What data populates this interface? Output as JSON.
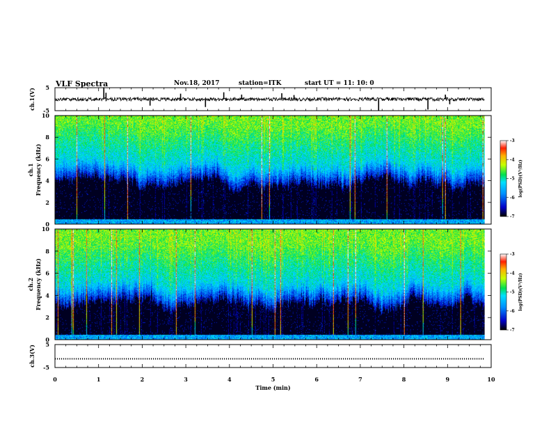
{
  "header": {
    "title": "VLF Spectra",
    "date": "Nov.18, 2017",
    "station": "station=ITK",
    "start": "start  UT =   11: 10: 0"
  },
  "colorbar": {
    "ticks": [
      "-3",
      "-4",
      "-5",
      "-6",
      "-7"
    ],
    "label": "log(PSD)(V²/Hz)"
  },
  "chart_data": [
    {
      "type": "line",
      "name": "ch.1 waveform",
      "ylabel": "ch.1(V)",
      "ylim": [
        -5,
        5
      ],
      "yticks": [
        "5",
        "-5"
      ],
      "xlim": [
        0,
        10
      ],
      "baseline": 0,
      "spikes": [
        {
          "x": 1.12,
          "y": 5.2
        },
        {
          "x": 1.17,
          "y": 2.8
        },
        {
          "x": 2.18,
          "y": -2.8
        },
        {
          "x": 2.88,
          "y": 2.4
        },
        {
          "x": 3.45,
          "y": -3.4
        },
        {
          "x": 3.87,
          "y": 3.0
        },
        {
          "x": 4.28,
          "y": 2.0
        },
        {
          "x": 5.2,
          "y": 2.6
        },
        {
          "x": 5.48,
          "y": 1.8
        },
        {
          "x": 7.42,
          "y": -5.0
        },
        {
          "x": 8.55,
          "y": -4.5
        },
        {
          "x": 8.95,
          "y": 2.0
        },
        {
          "x": 9.05,
          "y": -2.2
        }
      ]
    },
    {
      "type": "heatmap",
      "name": "ch.1 spectrogram",
      "ylabel": "ch.1\nFrequency (kHz)",
      "ylim": [
        0,
        10
      ],
      "yticks": [
        "0",
        "2",
        "4",
        "6",
        "8",
        "10"
      ],
      "xlim": [
        0,
        10
      ],
      "color_range": [
        -7,
        -3
      ],
      "cutoff_khz": 5.2
    },
    {
      "type": "heatmap",
      "name": "ch.2 spectrogram",
      "ylabel": "ch.2\nFrequency (kHz)",
      "ylim": [
        0,
        10
      ],
      "yticks": [
        "0",
        "2",
        "4",
        "6",
        "8",
        "10"
      ],
      "xlim": [
        0,
        10
      ],
      "color_range": [
        -7,
        -3
      ],
      "cutoff_khz": 5.0
    },
    {
      "type": "line",
      "name": "ch.3 waveform",
      "ylabel": "ch.3(V)",
      "ylim": [
        -5,
        5
      ],
      "yticks": [
        "5",
        "-5"
      ],
      "xlim": [
        0,
        10
      ],
      "baseline": -1.2
    }
  ],
  "xaxis": {
    "label": "Time (min)",
    "ticks": [
      "0",
      "1",
      "2",
      "3",
      "4",
      "5",
      "6",
      "7",
      "8",
      "9",
      "10"
    ]
  }
}
